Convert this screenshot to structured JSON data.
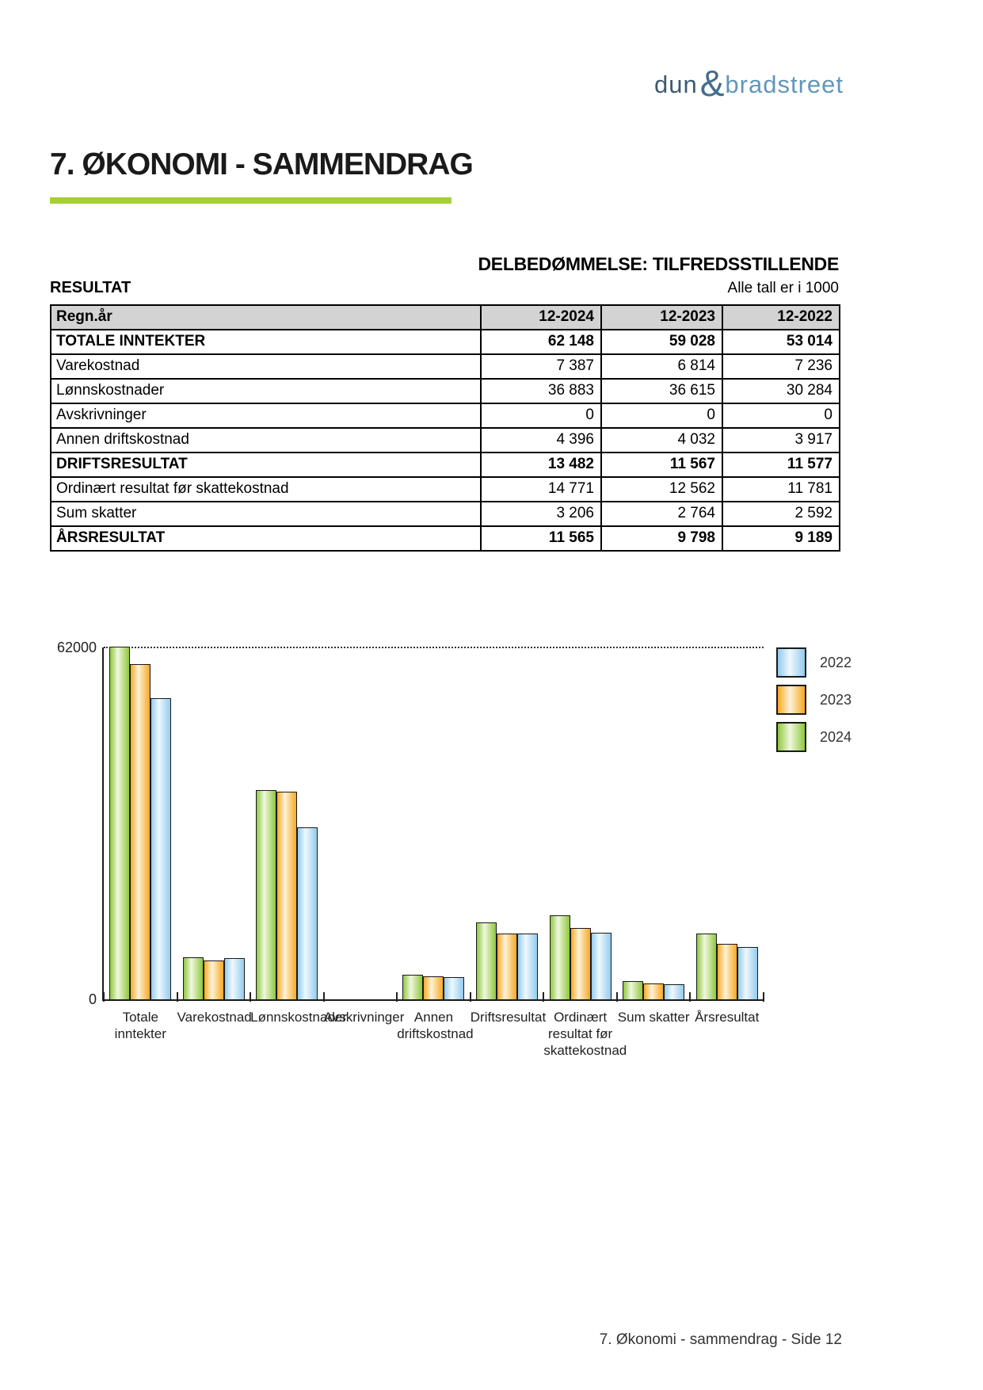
{
  "page": {
    "logo": {
      "part1": "dun",
      "amp": "&",
      "part2": "bradstreet"
    },
    "title": "7. ØKONOMI - SAMMENDRAG",
    "assessment": "DELBEDØMMELSE: TILFREDSSTILLENDE",
    "section_label": "RESULTAT",
    "units_note": "Alle tall er i 1000",
    "footer": "7. Økonomi - sammendrag - Side 12",
    "accent_color": "#A6CE39"
  },
  "table": {
    "header": [
      "Regn.år",
      "12-2024",
      "12-2023",
      "12-2022"
    ],
    "rows": [
      {
        "label": "TOTALE INNTEKTER",
        "values": [
          "62 148",
          "59 028",
          "53 014"
        ],
        "bold": true
      },
      {
        "label": "Varekostnad",
        "values": [
          "7 387",
          "6 814",
          "7 236"
        ],
        "bold": false
      },
      {
        "label": "Lønnskostnader",
        "values": [
          "36 883",
          "36 615",
          "30 284"
        ],
        "bold": false
      },
      {
        "label": "Avskrivninger",
        "values": [
          "0",
          "0",
          "0"
        ],
        "bold": false
      },
      {
        "label": "Annen driftskostnad",
        "values": [
          "4 396",
          "4 032",
          "3 917"
        ],
        "bold": false
      },
      {
        "label": "DRIFTSRESULTAT",
        "values": [
          "13 482",
          "11 567",
          "11 577"
        ],
        "bold": true
      },
      {
        "label": "Ordinært resultat før skattekostnad",
        "values": [
          "14 771",
          "12 562",
          "11 781"
        ],
        "bold": false
      },
      {
        "label": "Sum skatter",
        "values": [
          "3 206",
          "2 764",
          "2 592"
        ],
        "bold": false
      },
      {
        "label": "ÅRSRESULTAT",
        "values": [
          "11 565",
          "9 798",
          "9 189"
        ],
        "bold": true
      }
    ]
  },
  "chart_data": {
    "type": "bar",
    "title": "",
    "categories": [
      "Totale inntekter",
      "Varekostnad",
      "Lønnskostnader",
      "Avskrivninger",
      "Annen driftskostnad",
      "Driftsresultat",
      "Ordinært resultat før skattekostnad",
      "Sum skatter",
      "Årsresultat"
    ],
    "category_label_lines": [
      [
        "Totale",
        "inntekter"
      ],
      [
        "Varekostnad"
      ],
      [
        "Lønnskostnader"
      ],
      [
        "Avskrivninger"
      ],
      [
        "Annen",
        "driftskostnad"
      ],
      [
        "Driftsresultat"
      ],
      [
        "Ordinært",
        "resultat før",
        "skattekostnad"
      ],
      [
        "Sum skatter"
      ],
      [
        "Årsresultat"
      ]
    ],
    "series": [
      {
        "name": "2024",
        "color_edge": "#8FC73E",
        "color_center": "#F0F8DE",
        "values": [
          62148,
          7387,
          36883,
          0,
          4396,
          13482,
          14771,
          3206,
          11565
        ]
      },
      {
        "name": "2023",
        "color_edge": "#F6A824",
        "color_center": "#FEF3D8",
        "values": [
          59028,
          6814,
          36615,
          0,
          4032,
          11567,
          12562,
          2764,
          9798
        ]
      },
      {
        "name": "2022",
        "color_edge": "#93CBEE",
        "color_center": "#EFF8FE",
        "values": [
          53014,
          7236,
          30284,
          0,
          3917,
          11577,
          11781,
          2592,
          9189
        ]
      }
    ],
    "legend": {
      "position": "top-right",
      "items": [
        "2022",
        "2023",
        "2024"
      ]
    },
    "ylim": [
      0,
      62000
    ],
    "yticks": [
      "62000",
      "0"
    ],
    "xlabel": "",
    "ylabel": "",
    "grid": "dotted line at y=62000 only"
  }
}
